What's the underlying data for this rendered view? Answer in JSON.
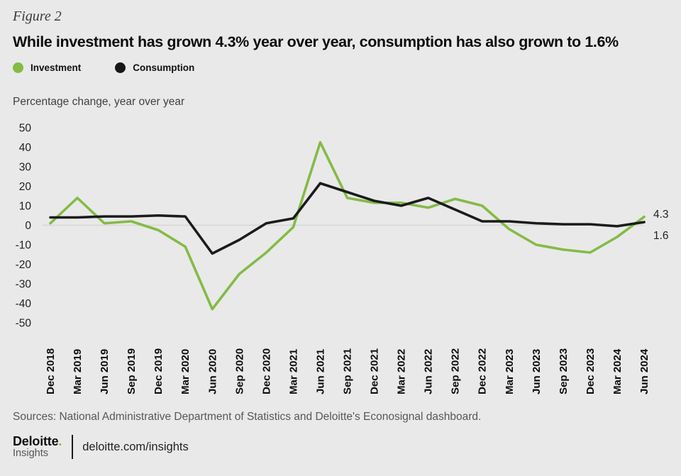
{
  "figure_label": "Figure 2",
  "title": "While investment has grown 4.3% year over year, consumption has also grown to 1.6%",
  "legend": [
    {
      "label": "Investment",
      "color": "#84bb45"
    },
    {
      "label": "Consumption",
      "color": "#161616"
    }
  ],
  "axis_caption": "Percentage change, year over year",
  "chart_data": {
    "type": "line",
    "title": "While investment has grown 4.3% year over year, consumption has also grown to 1.6%",
    "xlabel": "",
    "ylabel": "Percentage change, year over year",
    "ylim": [
      -50,
      50
    ],
    "ytick_labels": [
      "50",
      "40",
      "30",
      "20",
      "10",
      "0",
      "-10",
      "-20",
      "-30",
      "-40",
      "-50"
    ],
    "ytick_values": [
      50,
      40,
      30,
      20,
      10,
      0,
      -10,
      -20,
      -30,
      -40,
      -50
    ],
    "grid": "zero-line-only",
    "legend_position": "top-left",
    "categories": [
      "Dec 2018",
      "Mar 2019",
      "Jun 2019",
      "Sep 2019",
      "Dec 2019",
      "Mar 2020",
      "Jun 2020",
      "Sep 2020",
      "Dec 2020",
      "Mar 2021",
      "Jun 2021",
      "Sep 2021",
      "Dec 2021",
      "Mar 2022",
      "Jun 2022",
      "Sep 2022",
      "Dec 2022",
      "Mar 2023",
      "Jun 2023",
      "Sep 2023",
      "Dec 2023",
      "Mar 2024",
      "Jun 2024"
    ],
    "series": [
      {
        "name": "Investment",
        "color": "#84bb45",
        "values": [
          1,
          14,
          1,
          2,
          -2.5,
          -11,
          -43,
          -25,
          -14,
          -1,
          42.5,
          14,
          11.5,
          11.5,
          9,
          13.5,
          10,
          -2,
          -10,
          -12.5,
          -14,
          -6,
          4.3
        ]
      },
      {
        "name": "Consumption",
        "color": "#1b1b1b",
        "values": [
          4,
          4,
          4.5,
          4.5,
          5,
          4.5,
          -14.5,
          -7.5,
          1,
          3.5,
          21.5,
          17,
          12.5,
          10,
          14,
          8,
          2,
          2,
          1,
          0.5,
          0.5,
          -0.5,
          1.6
        ]
      }
    ],
    "end_labels": [
      {
        "text": "4.3",
        "x": 921,
        "y": 307
      },
      {
        "text": "1.6",
        "x": 921,
        "y": 337
      }
    ]
  },
  "sources": "Sources: National Administrative Department of Statistics and Deloitte's Econosignal dashboard.",
  "footer": {
    "brand": "Deloitte",
    "brand_dot": ".",
    "brand_sub": "Insights",
    "link": "deloitte.com/insights"
  },
  "colors": {
    "background": "#e9e9e9",
    "zero_line": "#d7d7d7",
    "investment_green": "#84bb45",
    "consumption_black": "#1b1b1b",
    "muted_text": "#55575a"
  }
}
